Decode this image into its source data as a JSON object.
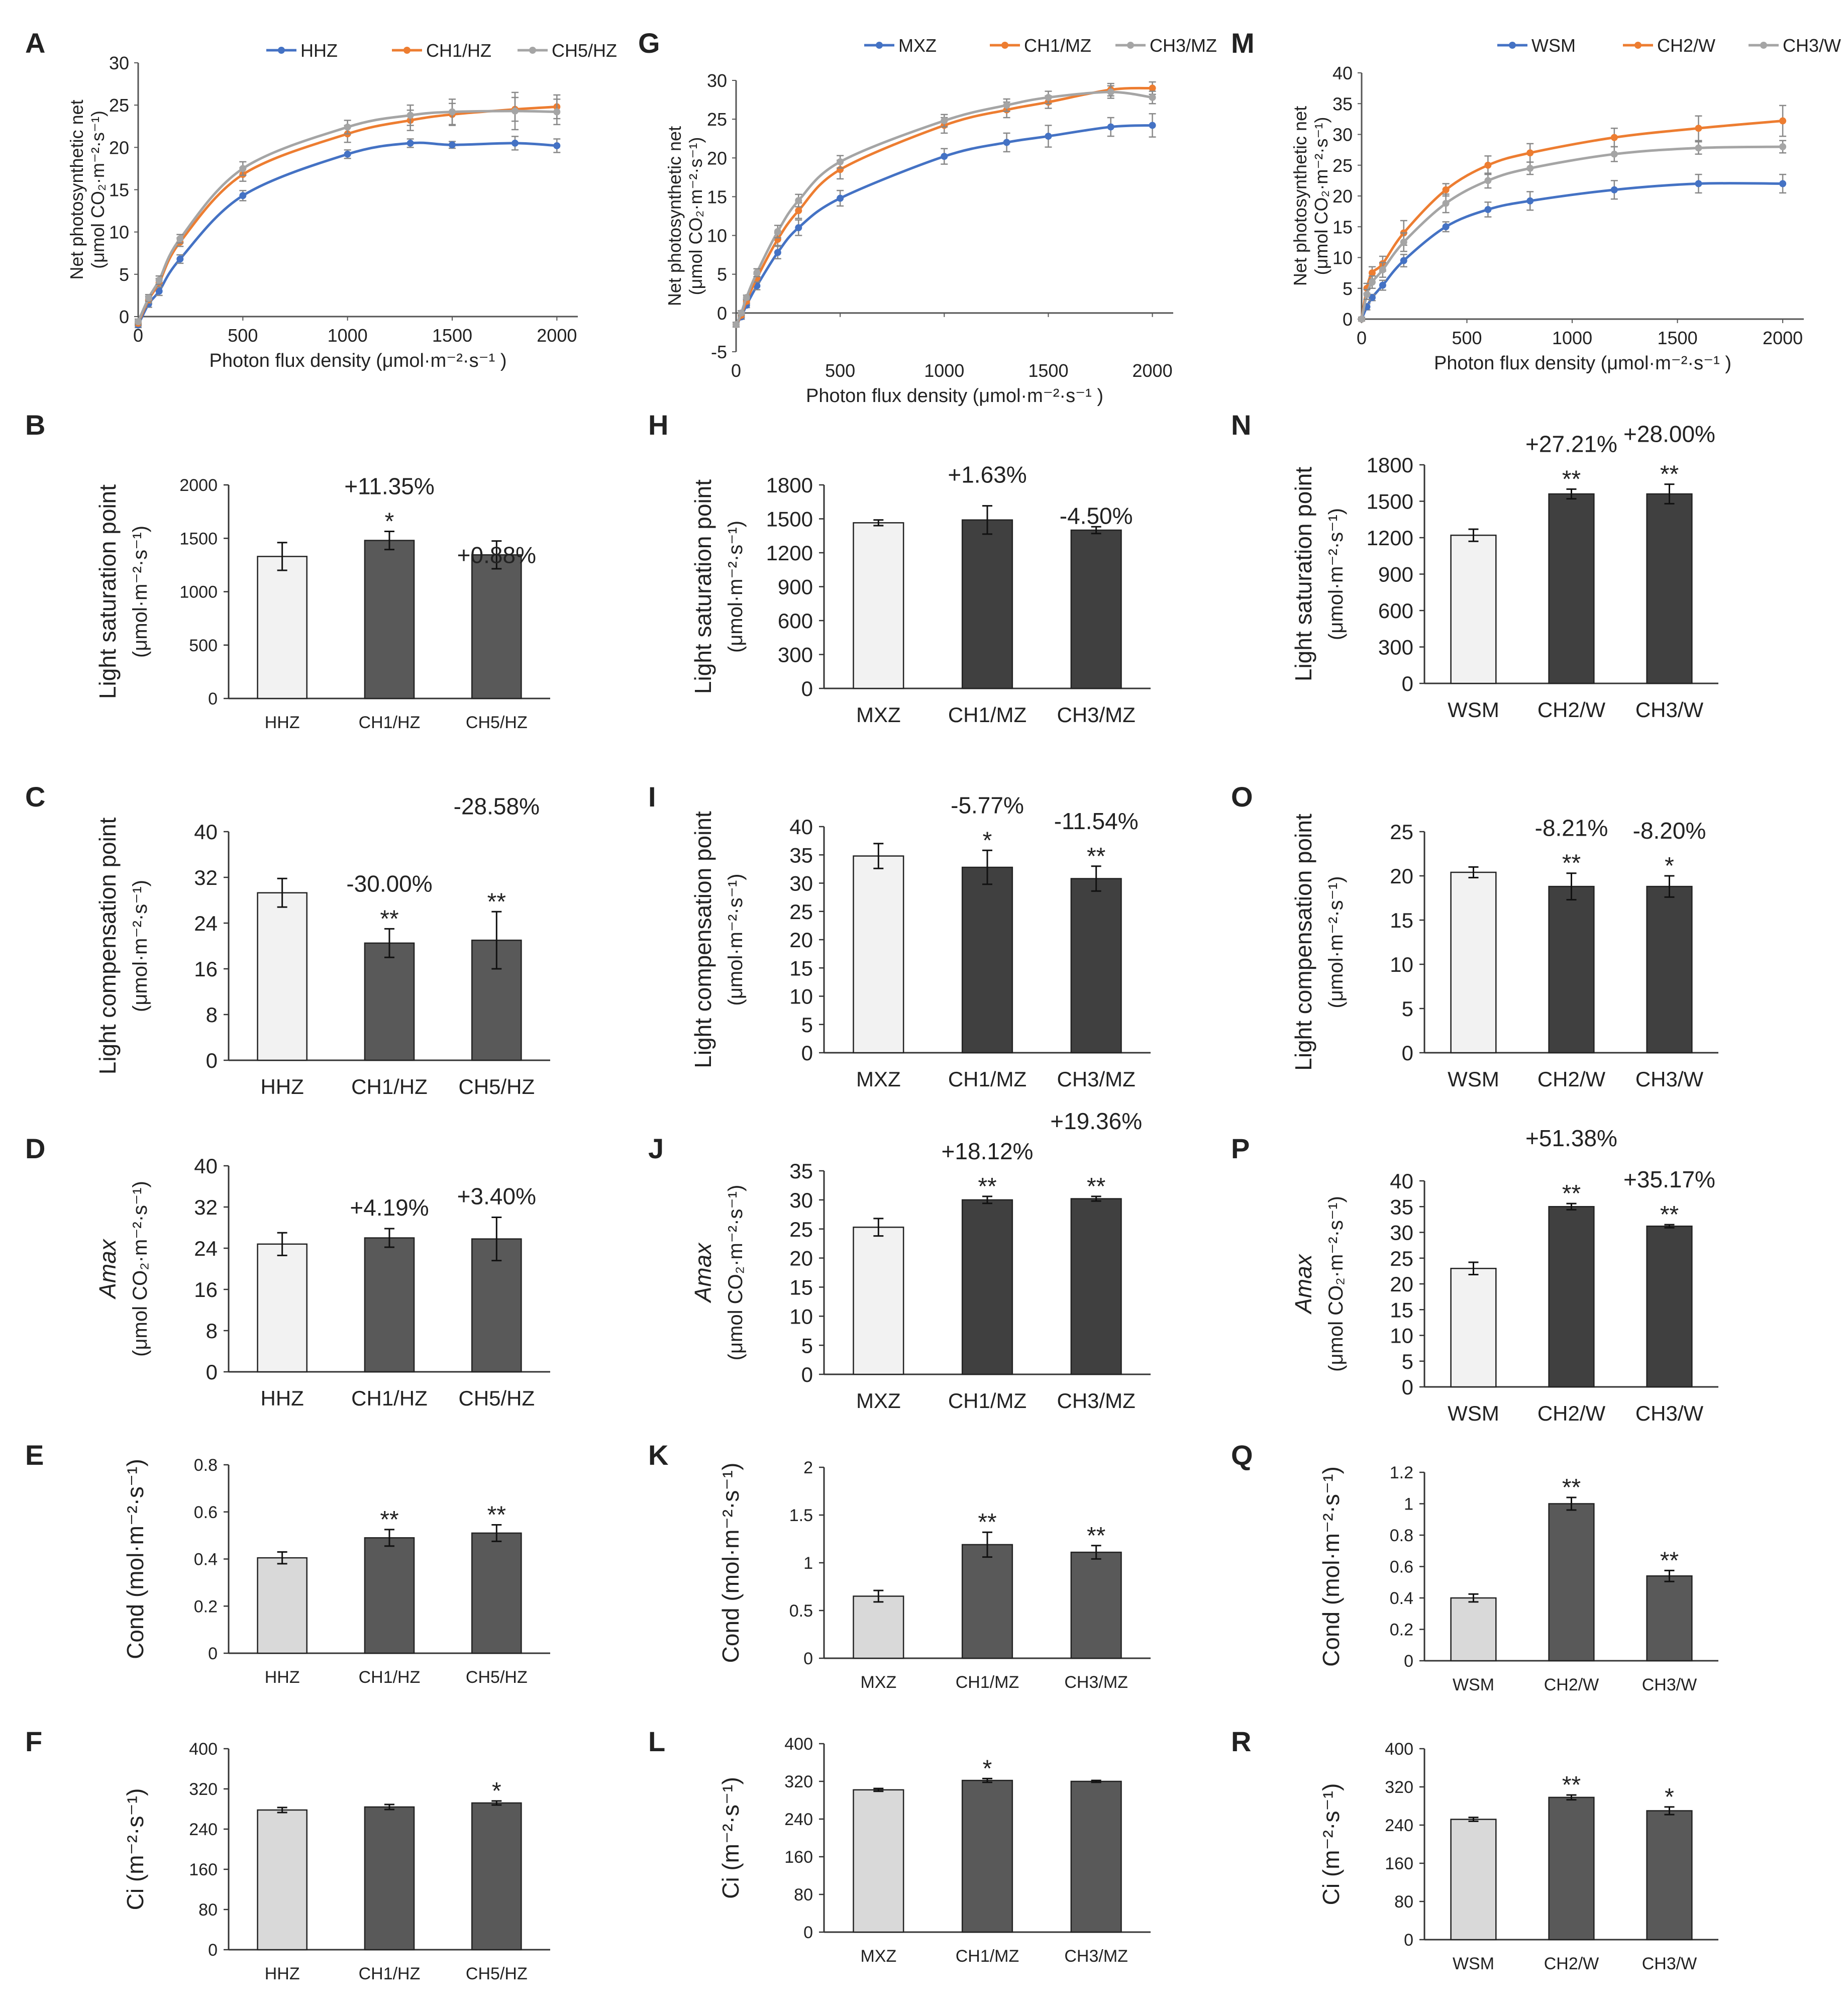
{
  "chart_data": [
    {
      "panel": "A",
      "type": "line",
      "xlabel": "Photon flux density (μmol·m⁻²·s⁻¹ )",
      "ylabel": [
        "Net photosynthetic net",
        "(μmol CO₂·m⁻²·s⁻¹)"
      ],
      "xlim": [
        0,
        2100
      ],
      "ylim": [
        0,
        30
      ],
      "xticks": [
        0,
        500,
        1000,
        1500,
        2000
      ],
      "yticks": [
        0,
        5,
        10,
        15,
        20,
        25,
        30
      ],
      "legend_position": "top",
      "x": [
        0,
        50,
        100,
        200,
        500,
        1000,
        1300,
        1500,
        1800,
        2000
      ],
      "series": [
        {
          "name": "HHZ",
          "color": "#4472C4",
          "values": [
            -1,
            1.5,
            3,
            6.8,
            14.3,
            19.2,
            20.5,
            20.3,
            20.5,
            20.2
          ],
          "err": [
            0.3,
            0.4,
            0.5,
            0.5,
            0.6,
            0.5,
            0.5,
            0.4,
            0.8,
            0.8
          ]
        },
        {
          "name": "CH1/HZ",
          "color": "#ED7D31",
          "values": [
            -0.8,
            2,
            4,
            8.8,
            16.8,
            21.6,
            23.2,
            23.9,
            24.5,
            24.8
          ],
          "err": [
            0.3,
            0.4,
            0.5,
            0.5,
            0.8,
            1,
            1.2,
            1.3,
            1.4,
            1.4
          ]
        },
        {
          "name": "CH5/HZ",
          "color": "#A5A5A5",
          "values": [
            -0.6,
            2.2,
            4.3,
            9.2,
            17.5,
            22.4,
            23.8,
            24.2,
            24.3,
            24.2
          ],
          "err": [
            0.3,
            0.4,
            0.5,
            0.5,
            0.8,
            0.8,
            1.2,
            1.5,
            2.2,
            1.5
          ]
        }
      ]
    },
    {
      "panel": "G",
      "type": "line",
      "xlabel": "Photon flux density (μmol·m⁻²·s⁻¹ )",
      "ylabel": [
        "Net photosynthetic net",
        "(μmol CO₂·m⁻²·s⁻¹)"
      ],
      "xlim": [
        0,
        2100
      ],
      "ylim": [
        -5,
        30
      ],
      "xticks": [
        0,
        500,
        1000,
        1500,
        2000
      ],
      "yticks": [
        -5,
        0,
        5,
        10,
        15,
        20,
        25,
        30
      ],
      "legend_position": "top",
      "x": [
        0,
        25,
        50,
        100,
        200,
        300,
        500,
        1000,
        1300,
        1500,
        1800,
        2000
      ],
      "series": [
        {
          "name": "MXZ",
          "color": "#4472C4",
          "values": [
            -1.5,
            -0.5,
            1,
            3.5,
            7.8,
            11,
            14.8,
            20.2,
            22,
            22.8,
            24,
            24.2
          ],
          "err": [
            0.3,
            0.3,
            0.3,
            0.5,
            0.8,
            1,
            1,
            1,
            1.2,
            1.4,
            1.2,
            1.5
          ]
        },
        {
          "name": "CH1/MZ",
          "color": "#ED7D31",
          "values": [
            -1.5,
            -0.3,
            1.5,
            4.5,
            9.5,
            13.2,
            18.5,
            24.2,
            26.2,
            27.2,
            28.8,
            29
          ],
          "err": [
            0.3,
            0.3,
            0.3,
            0.5,
            0.8,
            1,
            1.2,
            1,
            1,
            0.8,
            0.8,
            0.8
          ]
        },
        {
          "name": "CH3/MZ",
          "color": "#A5A5A5",
          "values": [
            -1.5,
            0,
            2,
            5.2,
            10.5,
            14.5,
            19.5,
            24.8,
            26.8,
            27.8,
            28.5,
            27.8
          ],
          "err": [
            0.3,
            0.3,
            0.3,
            0.5,
            0.8,
            0.8,
            0.8,
            0.8,
            0.8,
            0.8,
            0.8,
            0.8
          ]
        }
      ]
    },
    {
      "panel": "M",
      "type": "line",
      "xlabel": "Photon flux density (μmol·m⁻²·s⁻¹ )",
      "ylabel": [
        "Net photosynthetic net",
        "(μmol CO₂·m⁻²·s⁻¹)"
      ],
      "xlim": [
        0,
        2100
      ],
      "ylim": [
        0,
        40
      ],
      "xticks": [
        0,
        500,
        1000,
        1500,
        2000
      ],
      "yticks": [
        0,
        5,
        10,
        15,
        20,
        25,
        30,
        35,
        40
      ],
      "legend_position": "top",
      "x": [
        0,
        25,
        50,
        100,
        200,
        400,
        600,
        800,
        1200,
        1600,
        2000
      ],
      "series": [
        {
          "name": "WSM",
          "color": "#4472C4",
          "values": [
            0,
            2,
            3.5,
            5.5,
            9.5,
            15,
            17.8,
            19.2,
            21,
            22,
            22
          ],
          "err": [
            0.3,
            0.5,
            0.5,
            0.8,
            1,
            0.8,
            1.2,
            1.5,
            1.5,
            1.5,
            1.5
          ]
        },
        {
          "name": "CH2/W",
          "color": "#ED7D31",
          "values": [
            0,
            5,
            7.5,
            9,
            14,
            21,
            25,
            27,
            29.5,
            31,
            32.2
          ],
          "err": [
            0.3,
            0.8,
            1,
            1.2,
            2,
            1,
            1.5,
            1.5,
            1.5,
            2,
            2.5
          ]
        },
        {
          "name": "CH3/W",
          "color": "#A5A5A5",
          "values": [
            0,
            4,
            6,
            8,
            12.5,
            18.8,
            22.5,
            24.5,
            26.8,
            27.8,
            28
          ],
          "err": [
            0.3,
            0.8,
            1,
            1.2,
            1.5,
            1.5,
            1.2,
            1,
            1.2,
            1,
            1
          ]
        }
      ]
    },
    {
      "panel": "B",
      "type": "bar",
      "categories": [
        "HHZ",
        "CH1/HZ",
        "CH5/HZ"
      ],
      "values": [
        1330,
        1480,
        1345
      ],
      "err": [
        130,
        85,
        130
      ],
      "ylabel": [
        "Light saturation point",
        "(μmol·m⁻²·s⁻¹)"
      ],
      "ylim": [
        0,
        2000
      ],
      "yticks": [
        0,
        500,
        1000,
        1500,
        2000
      ],
      "tick_size": "small",
      "fills": [
        "#F2F2F2",
        "#595959",
        "#595959"
      ],
      "sig": [
        "",
        "*",
        ""
      ],
      "pct": [
        "",
        "+11.35%",
        "+0.88%"
      ],
      "pct_raise": [
        0,
        0,
        -70
      ]
    },
    {
      "panel": "C",
      "type": "bar",
      "categories": [
        "HHZ",
        "CH1/HZ",
        "CH5/HZ"
      ],
      "values": [
        29.3,
        20.5,
        21
      ],
      "err": [
        2.5,
        2.5,
        5
      ],
      "ylabel": [
        "Light compensation point",
        "(μmol·m⁻²·s⁻¹)"
      ],
      "ylim": [
        0,
        40
      ],
      "yticks": [
        0,
        8,
        16,
        24,
        32,
        40
      ],
      "tick_size": "large",
      "fills": [
        "#F2F2F2",
        "#595959",
        "#595959"
      ],
      "sig": [
        "",
        "**",
        "**"
      ],
      "pct": [
        "",
        "-30.00%",
        "-28.58%"
      ],
      "pct_raise": [
        0,
        0,
        120
      ]
    },
    {
      "panel": "D",
      "type": "bar",
      "categories": [
        "HHZ",
        "CH1/HZ",
        "CH5/HZ"
      ],
      "values": [
        24.8,
        26,
        25.8
      ],
      "err": [
        2.2,
        1.8,
        4.2
      ],
      "ylabel": [
        "Amax",
        "(μmol CO₂·m⁻²·s⁻¹)"
      ],
      "ylabel_italic_first": true,
      "ylim": [
        0,
        40
      ],
      "yticks": [
        0,
        8,
        16,
        24,
        32,
        40
      ],
      "tick_size": "large",
      "fills": [
        "#F2F2F2",
        "#595959",
        "#595959"
      ],
      "sig": [
        "",
        "",
        ""
      ],
      "pct": [
        "",
        "+4.19%",
        "+3.40%"
      ],
      "pct_raise": [
        0,
        0,
        0
      ]
    },
    {
      "panel": "E",
      "type": "bar",
      "categories": [
        "HHZ",
        "CH1/HZ",
        "CH5/HZ"
      ],
      "values": [
        0.405,
        0.49,
        0.51
      ],
      "err": [
        0.025,
        0.035,
        0.035
      ],
      "ylabel": [
        "Cond (mol·m⁻²·s⁻¹)"
      ],
      "ylim": [
        0,
        0.8
      ],
      "yticks": [
        0,
        0.2,
        0.4,
        0.6,
        0.8
      ],
      "tick_size": "small",
      "fills": [
        "#D9D9D9",
        "#595959",
        "#595959"
      ],
      "sig": [
        "",
        "**",
        "**"
      ],
      "pct": [
        "",
        "",
        ""
      ],
      "pct_raise": [
        0,
        0,
        0
      ]
    },
    {
      "panel": "F",
      "type": "bar",
      "categories": [
        "HHZ",
        "CH1/HZ",
        "CH5/HZ"
      ],
      "values": [
        278,
        284,
        292
      ],
      "err": [
        5,
        5,
        4
      ],
      "ylabel": [
        "Ci (m⁻²·s⁻¹)"
      ],
      "ylim": [
        0,
        400
      ],
      "yticks": [
        0,
        80,
        160,
        240,
        320,
        400
      ],
      "tick_size": "small",
      "fills": [
        "#D9D9D9",
        "#595959",
        "#595959"
      ],
      "sig": [
        "",
        "",
        "*"
      ],
      "pct": [
        "",
        "",
        ""
      ],
      "pct_raise": [
        0,
        0,
        0
      ]
    },
    {
      "panel": "H",
      "type": "bar",
      "categories": [
        "MXZ",
        "CH1/MZ",
        "CH3/MZ"
      ],
      "values": [
        1465,
        1490,
        1400
      ],
      "err": [
        25,
        125,
        30
      ],
      "ylabel": [
        "Light saturation point",
        "(μmol·m⁻²·s⁻¹)"
      ],
      "ylim": [
        0,
        1800
      ],
      "yticks": [
        0,
        300,
        600,
        900,
        1200,
        1500,
        1800
      ],
      "tick_size": "large",
      "fills": [
        "#F2F2F2",
        "#404040",
        "#404040"
      ],
      "sig": [
        "",
        "",
        ""
      ],
      "pct": [
        "",
        "+1.63%",
        "-4.50%"
      ],
      "pct_raise": [
        0,
        20,
        -20
      ]
    },
    {
      "panel": "I",
      "type": "bar",
      "categories": [
        "MXZ",
        "CH1/MZ",
        "CH3/MZ"
      ],
      "values": [
        34.8,
        32.8,
        30.8
      ],
      "err": [
        2.2,
        3,
        2.2
      ],
      "ylabel": [
        "Light compensation point",
        "(μmol·m⁻²·s⁻¹)"
      ],
      "ylim": [
        0,
        40
      ],
      "yticks": [
        0,
        5,
        10,
        15,
        20,
        25,
        30,
        35,
        40
      ],
      "tick_size": "large",
      "fills": [
        "#F2F2F2",
        "#404040",
        "#404040"
      ],
      "sig": [
        "",
        "*",
        "**"
      ],
      "pct": [
        "",
        "-5.77%",
        "-11.54%"
      ],
      "pct_raise": [
        0,
        0,
        0
      ]
    },
    {
      "panel": "J",
      "type": "bar",
      "categories": [
        "MXZ",
        "CH1/MZ",
        "CH3/MZ"
      ],
      "values": [
        25.3,
        30,
        30.2
      ],
      "err": [
        1.5,
        0.6,
        0.4
      ],
      "ylabel": [
        "Amax",
        "(μmol CO₂·m⁻²·s⁻¹)"
      ],
      "ylabel_italic_first": true,
      "ylim": [
        0,
        35
      ],
      "yticks": [
        0,
        5,
        10,
        15,
        20,
        25,
        30,
        35
      ],
      "tick_size": "large",
      "fills": [
        "#F2F2F2",
        "#404040",
        "#404040"
      ],
      "sig": [
        "",
        "**",
        "**"
      ],
      "pct": [
        "",
        "+18.12%",
        "+19.36%"
      ],
      "pct_raise": [
        0,
        0,
        60
      ]
    },
    {
      "panel": "K",
      "type": "bar",
      "categories": [
        "MXZ",
        "CH1/MZ",
        "CH3/MZ"
      ],
      "values": [
        0.65,
        1.19,
        1.11
      ],
      "err": [
        0.06,
        0.13,
        0.07
      ],
      "ylabel": [
        "Cond (mol·m⁻²·s⁻¹)"
      ],
      "ylim": [
        0,
        2
      ],
      "yticks": [
        0,
        0.5,
        1,
        1.5,
        2
      ],
      "tick_size": "small",
      "fills": [
        "#D9D9D9",
        "#595959",
        "#595959"
      ],
      "sig": [
        "",
        "**",
        "**"
      ],
      "pct": [
        "",
        "",
        ""
      ],
      "pct_raise": [
        0,
        0,
        0
      ]
    },
    {
      "panel": "L",
      "type": "bar",
      "categories": [
        "MXZ",
        "CH1/MZ",
        "CH3/MZ"
      ],
      "values": [
        302,
        322,
        320
      ],
      "err": [
        3,
        4,
        2
      ],
      "ylabel": [
        "Ci (m⁻²·s⁻¹)"
      ],
      "ylim": [
        0,
        400
      ],
      "yticks": [
        0,
        80,
        160,
        240,
        320,
        400
      ],
      "tick_size": "small",
      "fills": [
        "#D9D9D9",
        "#595959",
        "#595959"
      ],
      "sig": [
        "",
        "*",
        ""
      ],
      "pct": [
        "",
        "",
        ""
      ],
      "pct_raise": [
        0,
        0,
        0
      ]
    },
    {
      "panel": "N",
      "type": "bar",
      "categories": [
        "WSM",
        "CH2/W",
        "CH3/W"
      ],
      "values": [
        1220,
        1560,
        1560
      ],
      "err": [
        50,
        40,
        80
      ],
      "ylabel": [
        "Light saturation point",
        "(μmol·m⁻²·s⁻¹)"
      ],
      "ylim": [
        0,
        1800
      ],
      "yticks": [
        0,
        300,
        600,
        900,
        1200,
        1500,
        1800
      ],
      "tick_size": "large",
      "fills": [
        "#F2F2F2",
        "#404040",
        "#404040"
      ],
      "sig": [
        "",
        "**",
        "**"
      ],
      "pct": [
        "",
        "+27.21%",
        "+28.00%"
      ],
      "pct_raise": [
        0,
        0,
        10
      ]
    },
    {
      "panel": "O",
      "type": "bar",
      "categories": [
        "WSM",
        "CH2/W",
        "CH3/W"
      ],
      "values": [
        20.4,
        18.8,
        18.8
      ],
      "err": [
        0.6,
        1.5,
        1.2
      ],
      "ylabel": [
        "Light compensation point",
        "(μmol·m⁻²·s⁻¹)"
      ],
      "ylim": [
        0,
        25
      ],
      "yticks": [
        0,
        5,
        10,
        15,
        20,
        25
      ],
      "tick_size": "large",
      "fills": [
        "#F2F2F2",
        "#404040",
        "#404040"
      ],
      "sig": [
        "",
        "**",
        "*"
      ],
      "pct": [
        "",
        "-8.21%",
        "-8.20%"
      ],
      "pct_raise": [
        0,
        0,
        0
      ]
    },
    {
      "panel": "P",
      "type": "bar",
      "categories": [
        "WSM",
        "CH2/W",
        "CH3/W"
      ],
      "values": [
        23,
        35,
        31.2
      ],
      "err": [
        1.2,
        0.6,
        0.3
      ],
      "ylabel": [
        "Amax",
        "(μmol CO₂·m⁻²·s⁻¹)"
      ],
      "ylabel_italic_first": true,
      "ylim": [
        0,
        40
      ],
      "yticks": [
        0,
        5,
        10,
        15,
        20,
        25,
        30,
        35,
        40
      ],
      "tick_size": "large",
      "fills": [
        "#F2F2F2",
        "#404040",
        "#404040"
      ],
      "sig": [
        "",
        "**",
        "**"
      ],
      "pct": [
        "",
        "+51.38%",
        "+35.17%"
      ],
      "pct_raise": [
        0,
        40,
        0
      ]
    },
    {
      "panel": "Q",
      "type": "bar",
      "categories": [
        "WSM",
        "CH2/W",
        "CH3/W"
      ],
      "values": [
        0.4,
        1,
        0.54
      ],
      "err": [
        0.025,
        0.04,
        0.035
      ],
      "ylabel": [
        "Cond (mol·m⁻²·s⁻¹)"
      ],
      "ylim": [
        0,
        1.2
      ],
      "yticks": [
        0,
        0.2,
        0.4,
        0.6,
        0.8,
        1,
        1.2
      ],
      "tick_size": "small",
      "fills": [
        "#D9D9D9",
        "#595959",
        "#595959"
      ],
      "sig": [
        "",
        "**",
        "**"
      ],
      "pct": [
        "",
        "",
        ""
      ],
      "pct_raise": [
        0,
        0,
        0
      ]
    },
    {
      "panel": "R",
      "type": "bar",
      "categories": [
        "WSM",
        "CH2/W",
        "CH3/W"
      ],
      "values": [
        252,
        298,
        270
      ],
      "err": [
        4,
        5,
        8
      ],
      "ylabel": [
        "Ci (m⁻²·s⁻¹)"
      ],
      "ylim": [
        0,
        400
      ],
      "yticks": [
        0,
        80,
        160,
        240,
        320,
        400
      ],
      "tick_size": "small",
      "fills": [
        "#D9D9D9",
        "#595959",
        "#595959"
      ],
      "sig": [
        "",
        "**",
        "*"
      ],
      "pct": [
        "",
        "",
        ""
      ],
      "pct_raise": [
        0,
        0,
        0
      ]
    }
  ]
}
